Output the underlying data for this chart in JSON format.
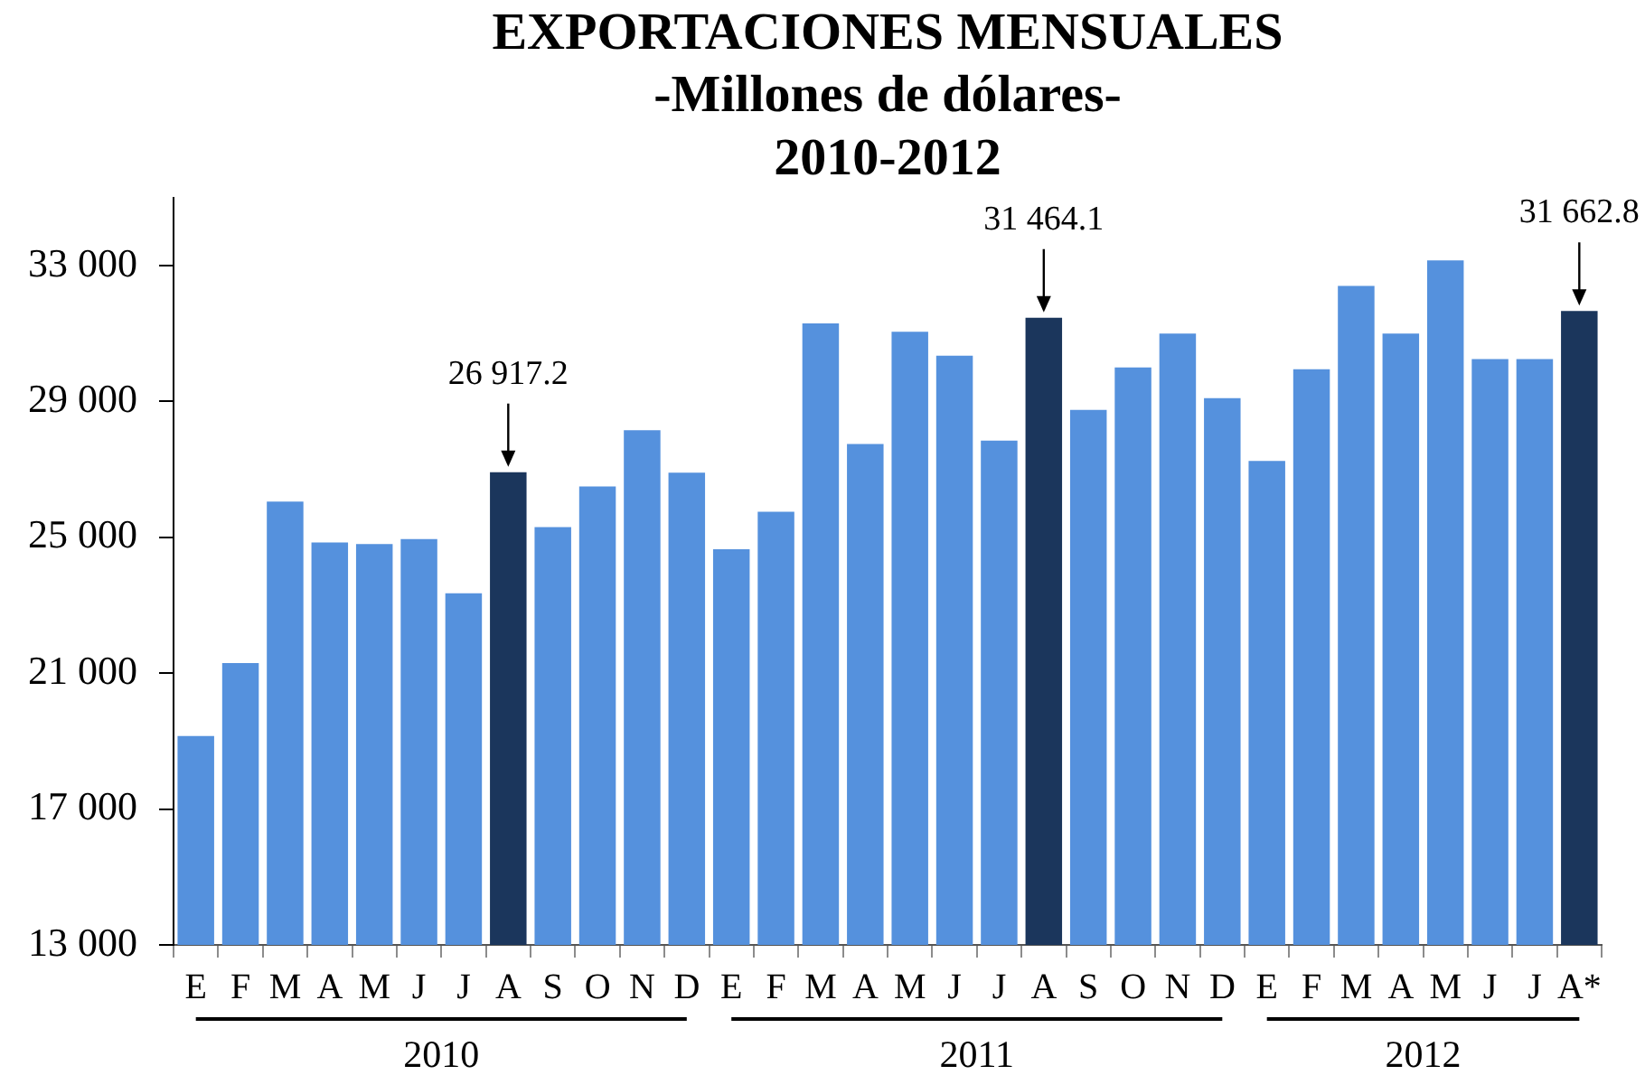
{
  "chart_data": {
    "type": "bar",
    "title": "EXPORTACIONES MENSUALES",
    "subtitle": "-Millones de dólares-\n2010-2012",
    "categories": [
      "E",
      "F",
      "M",
      "A",
      "M",
      "J",
      "J",
      "A",
      "S",
      "O",
      "N",
      "D",
      "E",
      "F",
      "M",
      "A",
      "M",
      "J",
      "J",
      "A",
      "S",
      "O",
      "N",
      "D",
      "E",
      "F",
      "M",
      "A",
      "M",
      "J",
      "J",
      "A*"
    ],
    "values": [
      19150,
      21300,
      26050,
      24850,
      24800,
      24950,
      23350,
      26917.2,
      25300,
      26500,
      28150,
      26900,
      24650,
      25750,
      31300,
      27750,
      31050,
      30350,
      27850,
      31464.1,
      28750,
      30000,
      31000,
      29100,
      27250,
      29950,
      32400,
      31000,
      33150,
      30250,
      30250,
      31662.8
    ],
    "colors": [
      "#5591dd",
      "#5591dd",
      "#5591dd",
      "#5591dd",
      "#5591dd",
      "#5591dd",
      "#5591dd",
      "#1b365c",
      "#5591dd",
      "#5591dd",
      "#5591dd",
      "#5591dd",
      "#5591dd",
      "#5591dd",
      "#5591dd",
      "#5591dd",
      "#5591dd",
      "#5591dd",
      "#5591dd",
      "#1b365c",
      "#5591dd",
      "#5591dd",
      "#5591dd",
      "#5591dd",
      "#5591dd",
      "#5591dd",
      "#5591dd",
      "#5591dd",
      "#5591dd",
      "#5591dd",
      "#5591dd",
      "#1b365c"
    ],
    "value_labels": [
      null,
      null,
      null,
      null,
      null,
      null,
      null,
      "26 917.2",
      null,
      null,
      null,
      null,
      null,
      null,
      null,
      null,
      null,
      null,
      null,
      "31 464.1",
      null,
      null,
      null,
      null,
      null,
      null,
      null,
      null,
      null,
      null,
      null,
      "31 662.8"
    ],
    "ylim": [
      13000,
      35000
    ],
    "yticks": [
      {
        "value": 13000,
        "label": "13 000"
      },
      {
        "value": 17000,
        "label": "17 000"
      },
      {
        "value": 21000,
        "label": "21 000"
      },
      {
        "value": 25000,
        "label": "25 000"
      },
      {
        "value": 29000,
        "label": "29 000"
      },
      {
        "value": 33000,
        "label": "33 000"
      }
    ],
    "annotations": [
      "2010",
      "2011",
      "2012"
    ]
  }
}
